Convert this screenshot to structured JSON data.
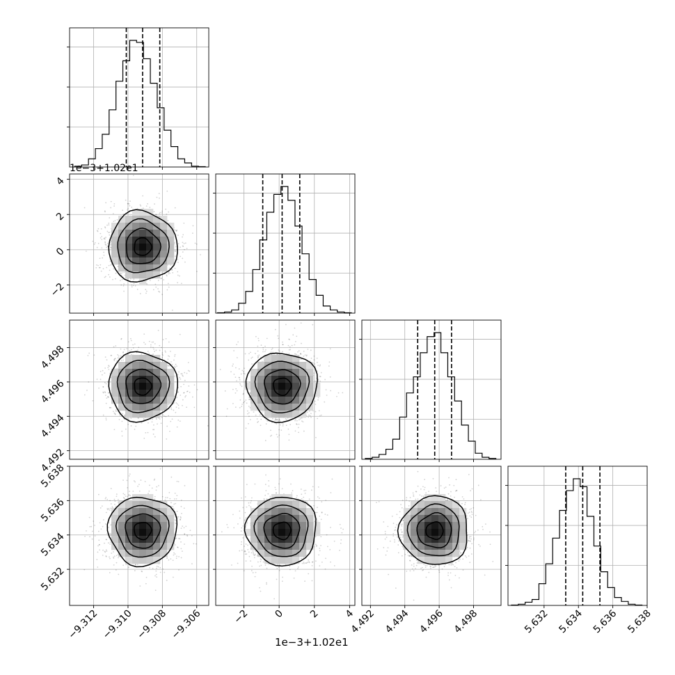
{
  "chart_data": {
    "type": "corner",
    "title": "",
    "grid": true,
    "scatter_color": "#000000",
    "hist_color": "#000000",
    "density_colormap": [
      "#ffffff",
      "#000000"
    ],
    "parameters": [
      {
        "name": "p0",
        "label": "",
        "range": [
          -9.3134,
          -9.3053
        ],
        "ticks": [
          -9.312,
          -9.31,
          -9.308,
          -9.306
        ],
        "tick_labels": [
          "−9.312",
          "−9.310",
          "−9.308",
          "−9.306"
        ],
        "quantiles": [
          -9.3101,
          -9.30915,
          -9.30815
        ],
        "mean": -9.30915,
        "std": 0.001,
        "hist_edges": [
          -9.3131,
          -9.3127,
          -9.3123,
          -9.3119,
          -9.3115,
          -9.3111,
          -9.3107,
          -9.3103,
          -9.3099,
          -9.3095,
          -9.3091,
          -9.3087,
          -9.3083,
          -9.3079,
          -9.3075,
          -9.3071,
          -9.3067,
          -9.3063,
          -9.3059,
          -9.3055
        ],
        "hist_counts": [
          2,
          5,
          20,
          45,
          80,
          140,
          210,
          260,
          310,
          305,
          265,
          205,
          145,
          90,
          50,
          20,
          10,
          2,
          1
        ]
      },
      {
        "name": "p1",
        "label": "",
        "offset_label": "1e−3+1.02e1",
        "range": [
          -3.6,
          4.3
        ],
        "ticks": [
          -2,
          0,
          2,
          4
        ],
        "tick_labels": [
          "−2",
          "0",
          "2",
          "4"
        ],
        "quantiles": [
          -0.93,
          0.17,
          1.17
        ],
        "mean": 0.17,
        "std": 1.0,
        "hist_edges": [
          -3.5,
          -3.1,
          -2.7,
          -2.3,
          -1.9,
          -1.5,
          -1.1,
          -0.7,
          -0.3,
          0.1,
          0.5,
          0.9,
          1.3,
          1.7,
          2.1,
          2.5,
          2.9,
          3.3,
          3.7,
          4.1
        ],
        "hist_counts": [
          1,
          3,
          8,
          25,
          55,
          110,
          185,
          255,
          300,
          320,
          285,
          220,
          150,
          85,
          45,
          18,
          8,
          3,
          1
        ]
      },
      {
        "name": "p2",
        "label": "",
        "range": [
          4.4915,
          4.4996
        ],
        "ticks": [
          4.492,
          4.494,
          4.496,
          4.498
        ],
        "tick_labels": [
          "4.492",
          "4.494",
          "4.496",
          "4.498"
        ],
        "quantiles": [
          4.49475,
          4.49574,
          4.49672
        ],
        "mean": 4.49574,
        "std": 0.001,
        "hist_edges": [
          4.4917,
          4.4921,
          4.4925,
          4.4929,
          4.4933,
          4.4937,
          4.4941,
          4.4945,
          4.4949,
          4.4953,
          4.4957,
          4.4961,
          4.4965,
          4.4969,
          4.4973,
          4.4977,
          4.4981,
          4.4985,
          4.4989,
          4.4993
        ],
        "hist_counts": [
          2,
          5,
          12,
          25,
          50,
          105,
          165,
          205,
          265,
          305,
          315,
          265,
          205,
          145,
          85,
          45,
          15,
          5,
          2
        ]
      },
      {
        "name": "p3",
        "label": "",
        "range": [
          5.6299,
          5.638
        ],
        "ticks": [
          5.632,
          5.634,
          5.636,
          5.638
        ],
        "tick_labels": [
          "5.632",
          "5.634",
          "5.636",
          "5.638"
        ],
        "quantiles": [
          5.63326,
          5.63425,
          5.63525
        ],
        "mean": 5.63425,
        "std": 0.001,
        "hist_edges": [
          5.6301,
          5.6305,
          5.6309,
          5.6313,
          5.6317,
          5.6321,
          5.6325,
          5.6329,
          5.6333,
          5.6337,
          5.6341,
          5.6345,
          5.6349,
          5.6353,
          5.6357,
          5.6361,
          5.6365,
          5.6369,
          5.6373,
          5.6377
        ],
        "hist_counts": [
          1,
          3,
          8,
          15,
          55,
          105,
          170,
          240,
          290,
          320,
          300,
          225,
          150,
          85,
          45,
          20,
          10,
          3,
          1
        ]
      }
    ]
  }
}
